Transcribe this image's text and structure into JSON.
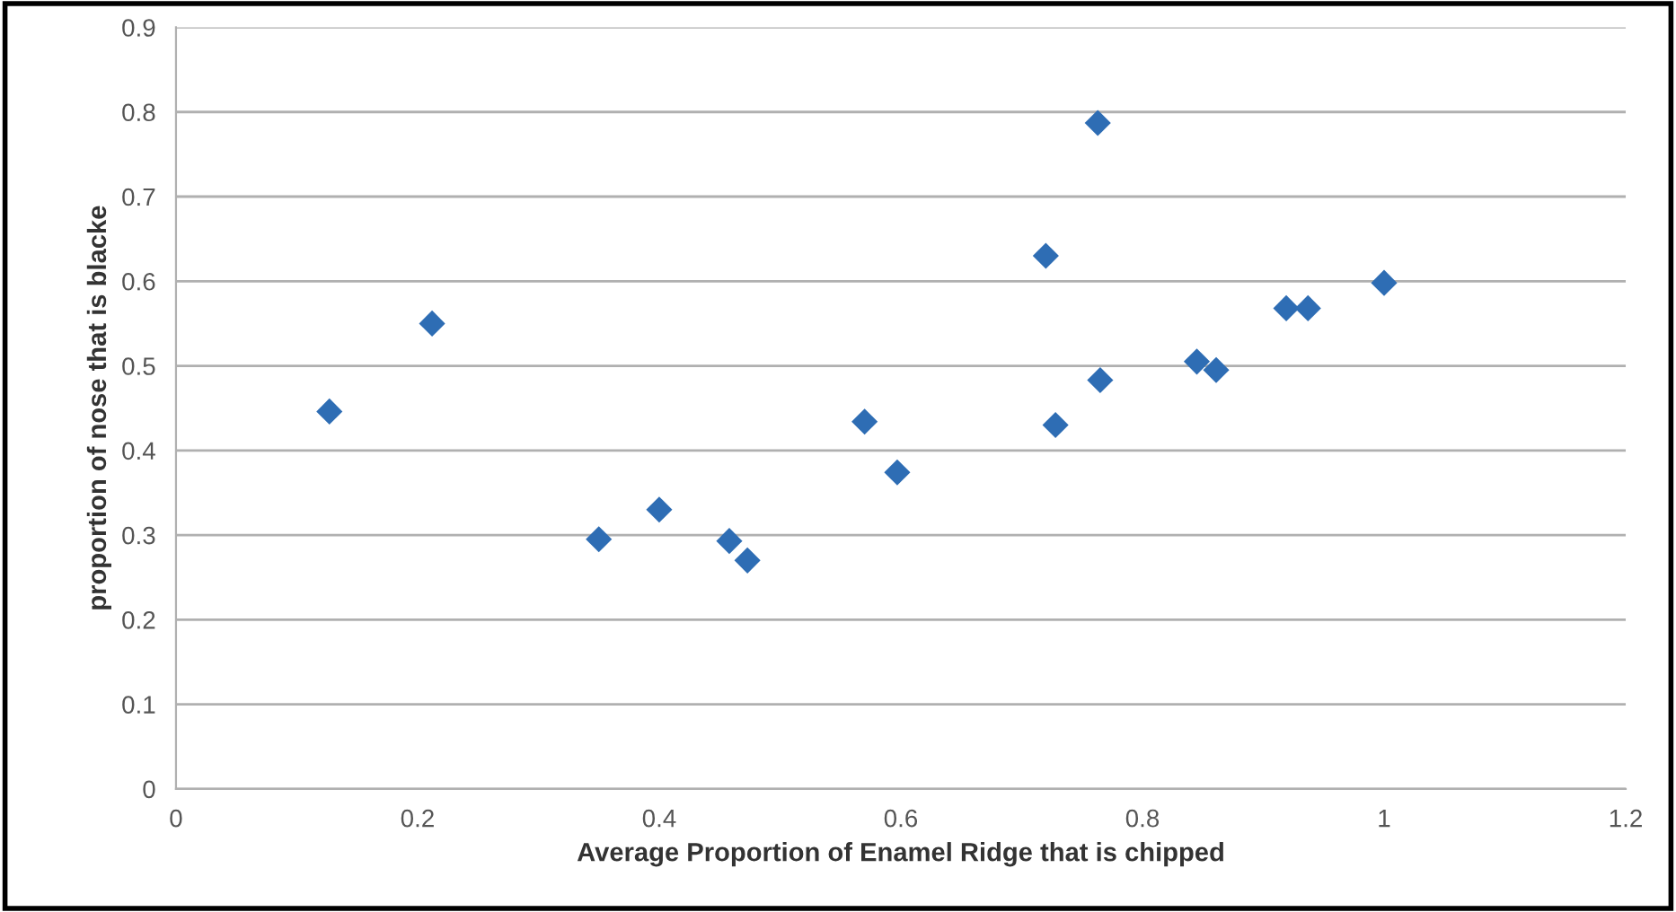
{
  "chart_data": {
    "type": "scatter",
    "xlabel": "Average Proportion of Enamel Ridge that is chipped",
    "ylabel": "proportion of nose that is blacke",
    "x": [
      0.127,
      0.212,
      0.35,
      0.4,
      0.458,
      0.473,
      0.57,
      0.597,
      0.72,
      0.728,
      0.763,
      0.765,
      0.845,
      0.861,
      0.919,
      0.937,
      1.0
    ],
    "series": [
      {
        "color": "#2e6db4",
        "values": [
          0.446,
          0.55,
          0.295,
          0.33,
          0.293,
          0.27,
          0.434,
          0.374,
          0.63,
          0.43,
          0.787,
          0.483,
          0.505,
          0.495,
          0.568,
          0.568,
          0.598
        ]
      }
    ],
    "xlim": [
      0,
      1.2
    ],
    "xticks": [
      0,
      0.2,
      0.4,
      0.6,
      0.8,
      1,
      1.2
    ],
    "ylim": [
      0,
      0.9
    ],
    "yticks": [
      0,
      0.1,
      0.2,
      0.3,
      0.4,
      0.5,
      0.6,
      0.7,
      0.8,
      0.9
    ],
    "grid": "y",
    "marker": "diamond",
    "legend": false
  }
}
